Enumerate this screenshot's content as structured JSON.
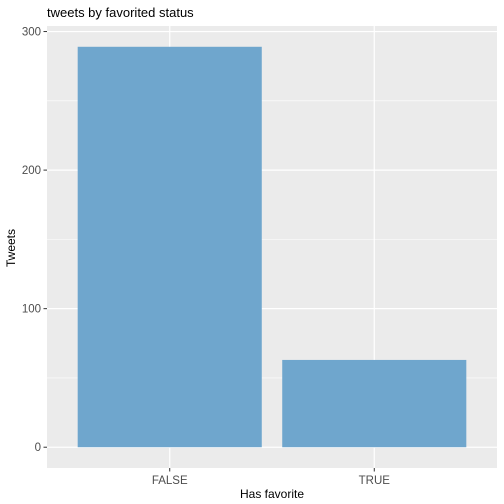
{
  "chart_data": {
    "type": "bar",
    "title": "tweets by favorited status",
    "xlabel": "Has favorite",
    "ylabel": "Tweets",
    "categories": [
      "FALSE",
      "TRUE"
    ],
    "values": [
      289,
      63
    ],
    "ylim": [
      -15,
      304
    ],
    "yticks": [
      0,
      100,
      200,
      300
    ],
    "grid": true,
    "colors": {
      "bar": "#6FA6CD",
      "panel": "#EBEBEB",
      "grid_major": "#FFFFFF",
      "tick_text": "#4D4D4D",
      "tick_mark": "#333333"
    }
  }
}
